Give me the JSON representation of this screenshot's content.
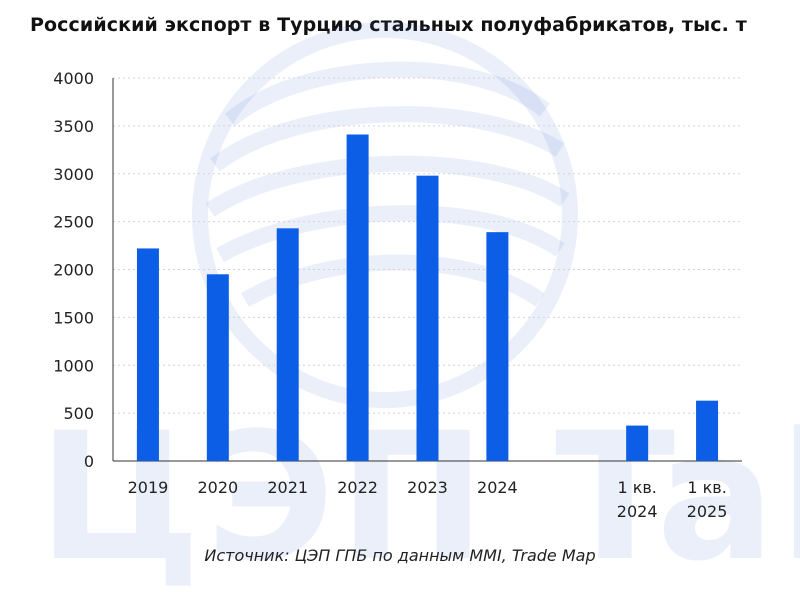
{
  "title": "Российский экспорт в Турцию стальных полуфабрикатов, тыс. т",
  "source": "Источник: ЦЭП ГПБ по данным MMI, Trade Map",
  "watermark": {
    "text": "ЦЭП Talks",
    "icon": "globe-logo-icon",
    "color": "#3f6fd1"
  },
  "colors": {
    "bar": "#0d5ee6",
    "grid": "#cfd3da",
    "axis": "#333333"
  },
  "chart_data": {
    "type": "bar",
    "title": "Российский экспорт в Турцию стальных полуфабрикатов, тыс. т",
    "xlabel": "",
    "ylabel": "",
    "ylim": [
      0,
      4000
    ],
    "yticks": [
      0,
      500,
      1000,
      1500,
      2000,
      2500,
      3000,
      3500,
      4000
    ],
    "grid": true,
    "categories": [
      {
        "lines": [
          "2019"
        ]
      },
      {
        "lines": [
          "2020"
        ]
      },
      {
        "lines": [
          "2021"
        ]
      },
      {
        "lines": [
          "2022"
        ]
      },
      {
        "lines": [
          "2023"
        ]
      },
      {
        "lines": [
          "2024"
        ]
      },
      {
        "lines": []
      },
      {
        "lines": [
          "1 кв.",
          "2024"
        ]
      },
      {
        "lines": [
          "1 кв.",
          "2025"
        ]
      }
    ],
    "values": [
      2220,
      1950,
      2430,
      3410,
      2980,
      2390,
      null,
      370,
      630
    ]
  }
}
